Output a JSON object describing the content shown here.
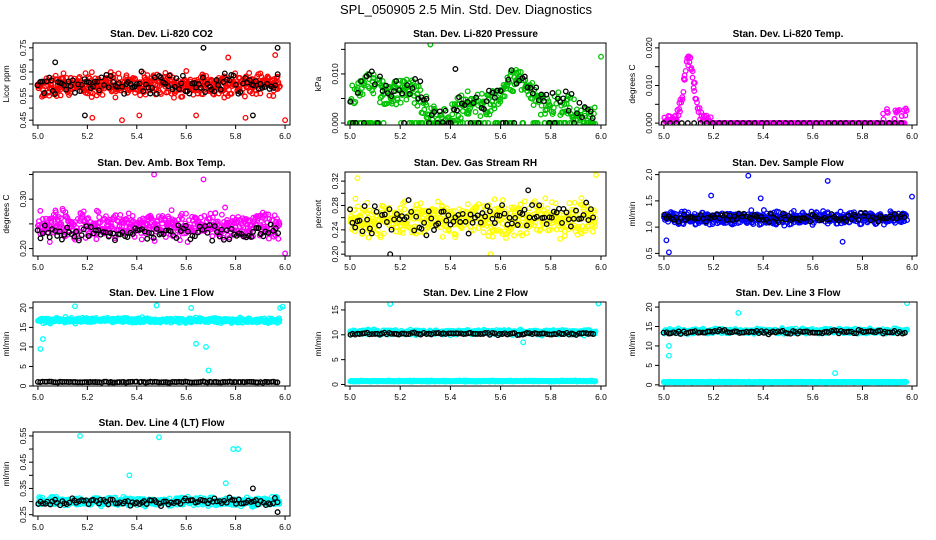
{
  "page_title": "SPL_050905  2.5 Min. Std. Dev. Diagnostics",
  "chart_data": [
    {
      "type": "scatter",
      "title": "Stan. Dev. Li-820 CO2",
      "ylabel": "Licor ppm",
      "xlim": [
        4.98,
        6.02
      ],
      "ylim": [
        0.43,
        0.77
      ],
      "xticks": [
        5.0,
        5.2,
        5.4,
        5.6,
        5.8,
        6.0
      ],
      "xtick_labels": [
        "5.0",
        "5.2",
        "5.4",
        "5.6",
        "5.8",
        "6.0"
      ],
      "yticks": [
        0.45,
        0.5,
        0.55,
        0.6,
        0.65,
        0.7,
        0.75
      ],
      "ytick_labels": [
        "0.45",
        "",
        "0.55",
        "",
        "0.65",
        "",
        "0.75"
      ],
      "series": [
        {
          "color": "#ff0000",
          "n": 500,
          "base": 0.595,
          "spread": 0.038,
          "outliers": [
            [
              5.22,
              0.46
            ],
            [
              5.34,
              0.45
            ],
            [
              5.41,
              0.47
            ],
            [
              5.64,
              0.47
            ],
            [
              5.84,
              0.46
            ],
            [
              6.0,
              0.45
            ],
            [
              5.96,
              0.72
            ],
            [
              5.77,
              0.71
            ]
          ]
        },
        {
          "color": "#000000",
          "n": 110,
          "base": 0.6,
          "spread": 0.035,
          "outliers": [
            [
              5.07,
              0.69
            ],
            [
              5.67,
              0.75
            ],
            [
              5.97,
              0.75
            ],
            [
              5.19,
              0.47
            ],
            [
              5.87,
              0.47
            ]
          ]
        }
      ]
    },
    {
      "type": "scatter",
      "title": "Stan. Dev. Li-820 Pressure",
      "ylabel": "kPa",
      "xlim": [
        4.98,
        6.02
      ],
      "ylim": [
        -0.0004,
        0.0163
      ],
      "xticks": [
        5.0,
        5.2,
        5.4,
        5.6,
        5.8,
        6.0
      ],
      "xtick_labels": [
        "5.0",
        "5.2",
        "5.4",
        "5.6",
        "5.8",
        "6.0"
      ],
      "yticks": [
        0.0,
        0.005,
        0.01,
        0.015
      ],
      "ytick_labels": [
        "0.000",
        "",
        "0.010",
        ""
      ],
      "series": [
        {
          "color": "#00c000",
          "n": 460,
          "base": 0.0045,
          "spread": 0.0025,
          "outliers": [
            [
              5.32,
              0.016
            ],
            [
              6.0,
              0.0135
            ],
            [
              5.02,
              0.0
            ]
          ]
        },
        {
          "color": "#000000",
          "n": 90,
          "base": 0.0055,
          "spread": 0.002,
          "outliers": [
            [
              5.28,
              0.0085
            ],
            [
              5.42,
              0.011
            ]
          ]
        }
      ]
    },
    {
      "type": "scatter",
      "title": "Stan. Dev. Li-820 Temp.",
      "ylabel": "degrees C",
      "xlim": [
        4.98,
        6.02
      ],
      "ylim": [
        -0.0005,
        0.0213
      ],
      "xticks": [
        5.0,
        5.2,
        5.4,
        5.6,
        5.8,
        6.0
      ],
      "xtick_labels": [
        "5.0",
        "5.2",
        "5.4",
        "5.6",
        "5.8",
        "6.0"
      ],
      "yticks": [
        0.0,
        0.005,
        0.01,
        0.015,
        0.02
      ],
      "ytick_labels": [
        "0.000",
        "",
        "0.010",
        "",
        "0.020"
      ],
      "series": [
        {
          "color": "#ff00ff",
          "n": 420,
          "base": 0.0,
          "spread": 0.0,
          "outliers": []
        },
        {
          "color": "#000000",
          "n": 40,
          "base": 0.0,
          "spread": 0.0,
          "outliers": []
        }
      ]
    },
    {
      "type": "scatter",
      "title": "Stan. Dev. Amb. Box Temp.",
      "ylabel": "degrees C",
      "xlim": [
        4.98,
        6.02
      ],
      "ylim": [
        0.185,
        0.355
      ],
      "xticks": [
        5.0,
        5.2,
        5.4,
        5.6,
        5.8,
        6.0
      ],
      "xtick_labels": [
        "5.0",
        "5.2",
        "5.4",
        "5.6",
        "5.8",
        "6.0"
      ],
      "yticks": [
        0.2,
        0.25,
        0.3,
        0.35
      ],
      "ytick_labels": [
        "0.20",
        "",
        "0.30",
        ""
      ],
      "series": [
        {
          "color": "#ff00ff",
          "n": 480,
          "base": 0.248,
          "spread": 0.022,
          "outliers": [
            [
              5.47,
              0.35
            ],
            [
              5.67,
              0.34
            ],
            [
              6.0,
              0.19
            ]
          ]
        },
        {
          "color": "#000000",
          "n": 100,
          "base": 0.232,
          "spread": 0.015,
          "outliers": []
        }
      ]
    },
    {
      "type": "scatter",
      "title": "Stan. Dev. Gas Stream RH",
      "ylabel": "percent",
      "xlim": [
        4.98,
        6.02
      ],
      "ylim": [
        0.197,
        0.335
      ],
      "xticks": [
        5.0,
        5.2,
        5.4,
        5.6,
        5.8,
        6.0
      ],
      "xtick_labels": [
        "5.0",
        "5.2",
        "5.4",
        "5.6",
        "5.8",
        "6.0"
      ],
      "yticks": [
        0.2,
        0.22,
        0.24,
        0.26,
        0.28,
        0.3,
        0.32
      ],
      "ytick_labels": [
        "0.20",
        "",
        "0.24",
        "",
        "0.28",
        "",
        "0.32"
      ],
      "series": [
        {
          "color": "#ffff00",
          "n": 500,
          "base": 0.258,
          "spread": 0.022,
          "outliers": [
            [
              5.03,
              0.325
            ],
            [
              5.98,
              0.33
            ],
            [
              5.56,
              0.2
            ]
          ]
        },
        {
          "color": "#000000",
          "n": 100,
          "base": 0.257,
          "spread": 0.02,
          "outliers": [
            [
              5.16,
              0.2
            ],
            [
              5.71,
              0.305
            ]
          ]
        }
      ]
    },
    {
      "type": "scatter",
      "title": "Stan. Dev. Sample Flow",
      "ylabel": "ml/min",
      "xlim": [
        4.98,
        6.02
      ],
      "ylim": [
        0.45,
        2.05
      ],
      "xticks": [
        5.0,
        5.2,
        5.4,
        5.6,
        5.8,
        6.0
      ],
      "xtick_labels": [
        "5.0",
        "5.2",
        "5.4",
        "5.6",
        "5.8",
        "6.0"
      ],
      "yticks": [
        0.5,
        1.0,
        1.5,
        2.0
      ],
      "ytick_labels": [
        "0.5",
        "1.0",
        "1.5",
        "2.0"
      ],
      "series": [
        {
          "color": "#0000ff",
          "n": 500,
          "base": 1.17,
          "spread": 0.1,
          "outliers": [
            [
              5.34,
              1.98
            ],
            [
              5.66,
              1.88
            ],
            [
              5.02,
              0.52
            ],
            [
              5.01,
              0.75
            ],
            [
              5.72,
              0.72
            ],
            [
              6.0,
              1.58
            ],
            [
              5.39,
              1.55
            ],
            [
              5.19,
              1.6
            ]
          ]
        },
        {
          "color": "#000000",
          "n": 100,
          "base": 1.18,
          "spread": 0.07,
          "outliers": []
        }
      ]
    },
    {
      "type": "scatter",
      "title": "Stan. Dev. Line 1 Flow",
      "ylabel": "ml/min",
      "xlim": [
        4.98,
        6.02
      ],
      "ylim": [
        0,
        21.5
      ],
      "xticks": [
        5.0,
        5.2,
        5.4,
        5.6,
        5.8,
        6.0
      ],
      "xtick_labels": [
        "5.0",
        "5.2",
        "5.4",
        "5.6",
        "5.8",
        "6.0"
      ],
      "yticks": [
        0,
        5,
        10,
        15,
        20
      ],
      "ytick_labels": [
        "0",
        "5",
        "10",
        "15",
        "20"
      ],
      "series": [
        {
          "color": "#00ffff",
          "n": 480,
          "base": 16.8,
          "spread": 0.5,
          "outliers": [
            [
              5.01,
              9.5
            ],
            [
              5.02,
              12.0
            ],
            [
              5.64,
              10.8
            ],
            [
              5.68,
              10.0
            ],
            [
              5.69,
              4.0
            ],
            [
              5.15,
              20.4
            ],
            [
              5.48,
              20.6
            ],
            [
              5.62,
              20.0
            ],
            [
              5.99,
              20.3
            ],
            [
              5.98,
              20.0
            ]
          ]
        },
        {
          "color": "#000000",
          "n": 110,
          "base": 1.0,
          "spread": 0.1,
          "outliers": []
        }
      ]
    },
    {
      "type": "scatter",
      "title": "Stan. Dev. Line 2 Flow",
      "ylabel": "ml/min",
      "xlim": [
        4.98,
        6.02
      ],
      "ylim": [
        -0.3,
        16.6
      ],
      "xticks": [
        5.0,
        5.2,
        5.4,
        5.6,
        5.8,
        6.0
      ],
      "xtick_labels": [
        "5.0",
        "5.2",
        "5.4",
        "5.6",
        "5.8",
        "6.0"
      ],
      "yticks": [
        0,
        5,
        10,
        15
      ],
      "ytick_labels": [
        "0",
        "5",
        "10",
        "15"
      ],
      "series": [
        {
          "color": "#00ffff",
          "n": 480,
          "base": 10.5,
          "spread": 0.4,
          "outliers": [
            [
              5.16,
              16.2
            ],
            [
              5.99,
              16.3
            ],
            [
              5.69,
              8.5
            ]
          ]
        },
        {
          "color": "#00ffff",
          "n": 400,
          "base": 0.7,
          "spread": 0.08,
          "outliers": []
        },
        {
          "color": "#000000",
          "n": 100,
          "base": 10.2,
          "spread": 0.2,
          "outliers": []
        }
      ]
    },
    {
      "type": "scatter",
      "title": "Stan. Dev. Line 3 Flow",
      "ylabel": "ml/min",
      "xlim": [
        4.98,
        6.02
      ],
      "ylim": [
        -0.3,
        21.3
      ],
      "xticks": [
        5.0,
        5.2,
        5.4,
        5.6,
        5.8,
        6.0
      ],
      "xtick_labels": [
        "5.0",
        "5.2",
        "5.4",
        "5.6",
        "5.8",
        "6.0"
      ],
      "yticks": [
        0,
        5,
        10,
        15,
        20
      ],
      "ytick_labels": [
        "0",
        "5",
        "10",
        "15",
        "20"
      ],
      "series": [
        {
          "color": "#00ffff",
          "n": 480,
          "base": 13.8,
          "spread": 0.5,
          "outliers": [
            [
              5.02,
              7.5
            ],
            [
              5.02,
              10.0
            ],
            [
              5.69,
              3.0
            ],
            [
              5.98,
              21.0
            ],
            [
              5.3,
              18.5
            ]
          ]
        },
        {
          "color": "#00ffff",
          "n": 400,
          "base": 0.7,
          "spread": 0.08,
          "outliers": []
        },
        {
          "color": "#000000",
          "n": 100,
          "base": 13.6,
          "spread": 0.4,
          "outliers": []
        }
      ]
    },
    {
      "type": "scatter",
      "title": "Stan. Dev. Line 4 (LT) Flow",
      "ylabel": "ml/min",
      "xlim": [
        4.98,
        6.02
      ],
      "ylim": [
        0.245,
        0.565
      ],
      "xticks": [
        5.0,
        5.2,
        5.4,
        5.6,
        5.8,
        6.0
      ],
      "xtick_labels": [
        "5.0",
        "5.2",
        "5.4",
        "5.6",
        "5.8",
        "6.0"
      ],
      "yticks": [
        0.25,
        0.3,
        0.35,
        0.4,
        0.45,
        0.5,
        0.55
      ],
      "ytick_labels": [
        "0.25",
        "",
        "0.35",
        "",
        "0.45",
        "",
        "0.55"
      ],
      "series": [
        {
          "color": "#00ffff",
          "n": 480,
          "base": 0.3,
          "spread": 0.013,
          "outliers": [
            [
              5.17,
              0.55
            ],
            [
              5.49,
              0.545
            ],
            [
              5.79,
              0.5
            ],
            [
              5.81,
              0.5
            ],
            [
              5.37,
              0.4
            ],
            [
              5.76,
              0.37
            ]
          ]
        },
        {
          "color": "#000000",
          "n": 100,
          "base": 0.298,
          "spread": 0.012,
          "outliers": [
            [
              5.87,
              0.35
            ],
            [
              5.97,
              0.26
            ]
          ]
        }
      ]
    }
  ]
}
